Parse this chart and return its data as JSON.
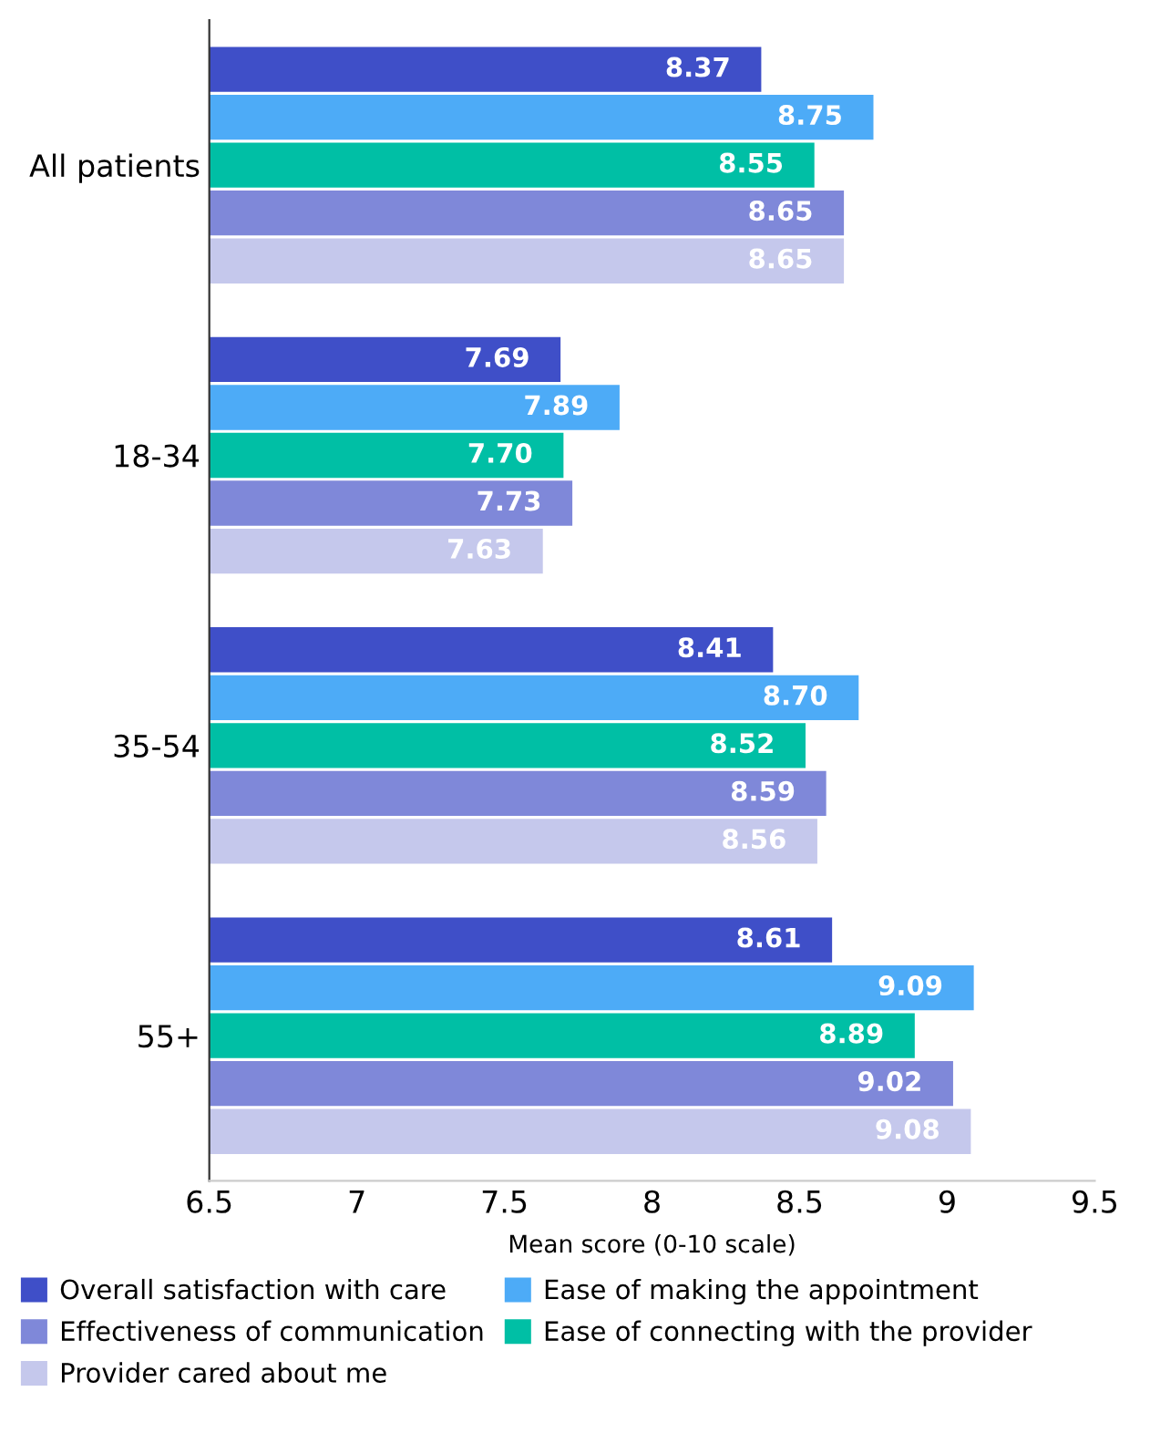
{
  "chart_data": {
    "type": "bar",
    "orientation": "horizontal",
    "xlabel": "Mean score (0-10 scale)",
    "categories": [
      "All patients",
      "18-34",
      "35-54",
      "55+"
    ],
    "series": [
      {
        "name": "Overall satisfaction with care",
        "color": "#3f4fc8",
        "values": [
          8.37,
          7.69,
          8.41,
          8.61
        ],
        "value_labels": [
          "8.37",
          "7.69",
          "8.41",
          "8.61"
        ]
      },
      {
        "name": "Ease of making the appointment",
        "color": "#4dabf7",
        "values": [
          8.75,
          7.89,
          8.7,
          9.09
        ],
        "value_labels": [
          "8.75",
          "7.89",
          "8.70",
          "9.09"
        ]
      },
      {
        "name": "Ease of connecting with the provider",
        "color": "#00bfa5",
        "values": [
          8.55,
          7.7,
          8.52,
          8.89
        ],
        "value_labels": [
          "8.55",
          "7.70",
          "8.52",
          "8.89"
        ]
      },
      {
        "name": "Effectiveness of communication",
        "color": "#7f88d9",
        "values": [
          8.65,
          7.73,
          8.59,
          9.02
        ],
        "value_labels": [
          "8.65",
          "7.73",
          "8.59",
          "9.02"
        ]
      },
      {
        "name": "Provider cared about me",
        "color": "#c5c8ec",
        "values": [
          8.65,
          7.63,
          8.56,
          9.08
        ],
        "value_labels": [
          "8.65",
          "7.63",
          "8.56",
          "9.08"
        ]
      }
    ],
    "xlim": [
      6.5,
      9.5
    ],
    "xticks": [
      6.5,
      7,
      7.5,
      8,
      8.5,
      9,
      9.5
    ],
    "grid": false,
    "legend": "bottom"
  }
}
